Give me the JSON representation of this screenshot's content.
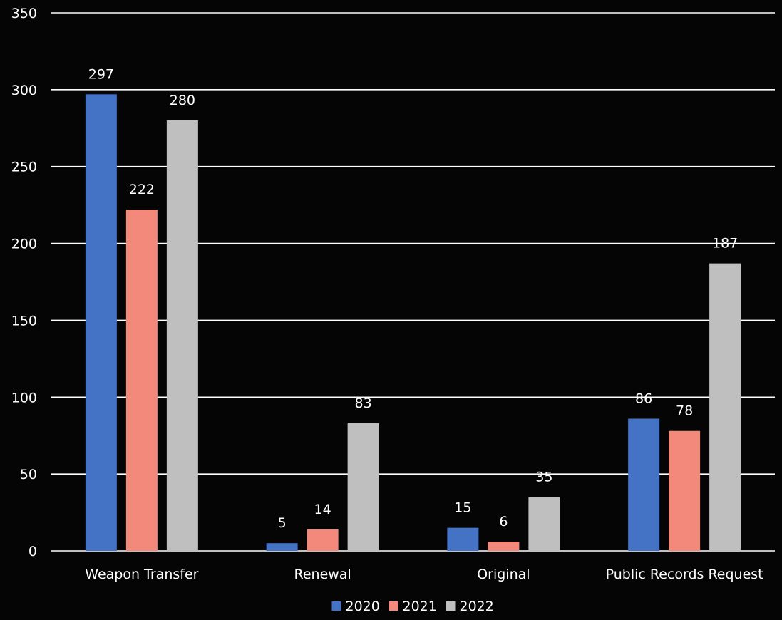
{
  "chart_data": {
    "type": "bar",
    "title": "",
    "xlabel": "",
    "ylabel": "",
    "ylim": [
      0,
      350
    ],
    "yticks": [
      0,
      50,
      100,
      150,
      200,
      250,
      300,
      350
    ],
    "grid": true,
    "legend_position": "bottom",
    "categories": [
      "Weapon Transfer",
      "Renewal",
      "Original",
      "Public Records Request"
    ],
    "series": [
      {
        "name": "2020",
        "color": "#4472C4",
        "values": [
          297,
          5,
          15,
          86
        ]
      },
      {
        "name": "2021",
        "color": "#F2897A",
        "values": [
          222,
          14,
          6,
          78
        ]
      },
      {
        "name": "2022",
        "color": "#BFBFBF",
        "values": [
          280,
          83,
          35,
          187
        ]
      }
    ],
    "data_labels": true,
    "background_color": "#050505",
    "gridline_color": "#FFFFFF",
    "text_color": "#FFFFFF"
  }
}
